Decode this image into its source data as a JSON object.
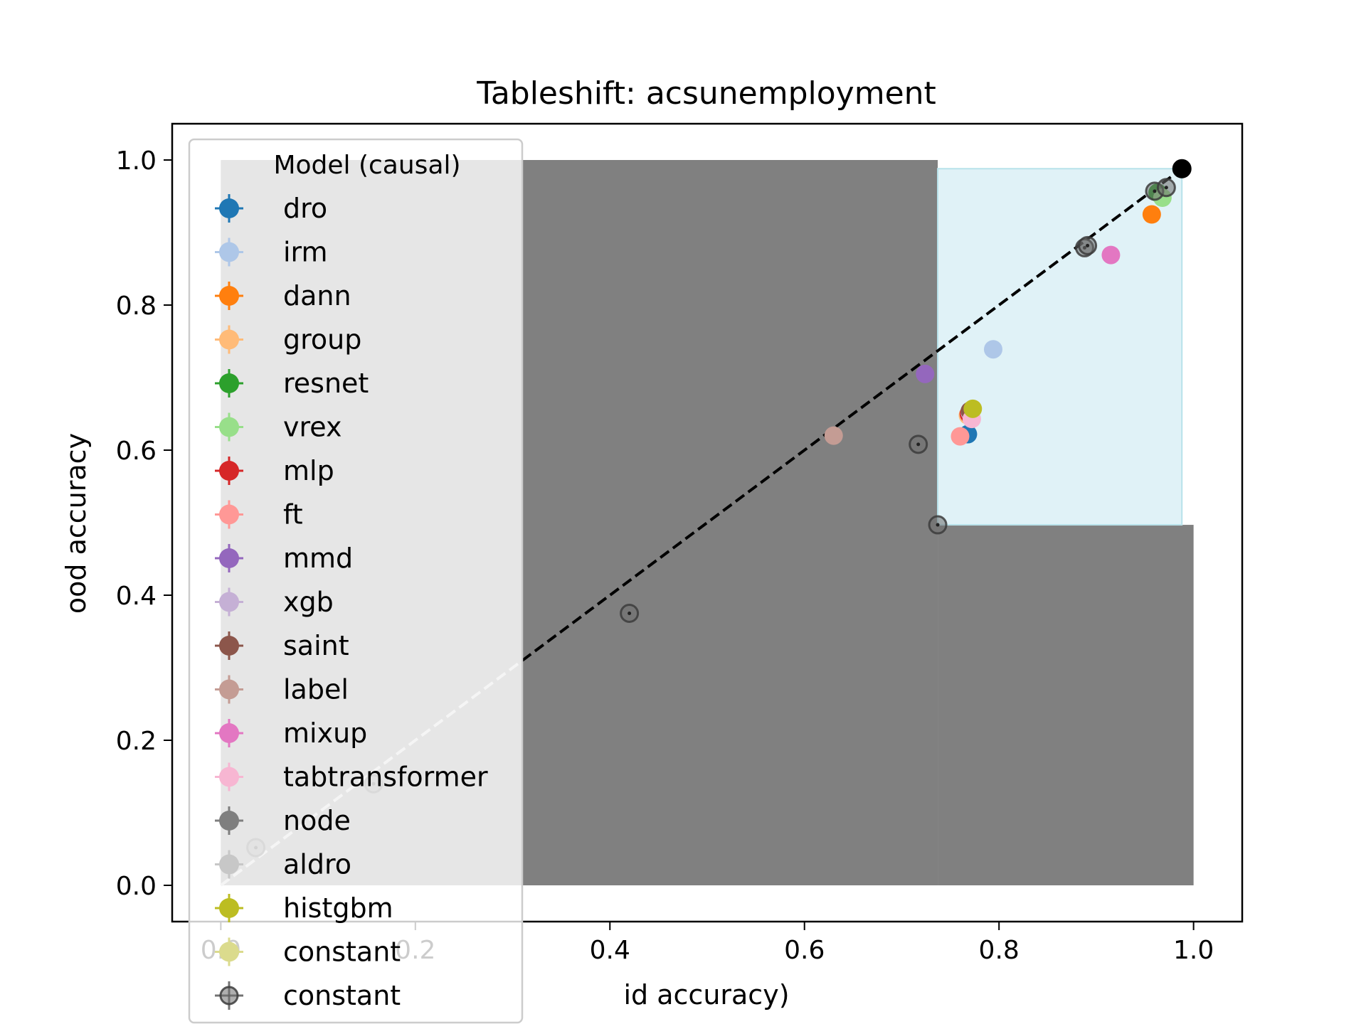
{
  "chart_data": {
    "type": "scatter",
    "title": "Tableshift: acsunemployment",
    "xlabel": "id accuracy)",
    "ylabel": "ood accuracy",
    "xlim": [
      -0.05,
      1.05
    ],
    "ylim": [
      -0.05,
      1.05
    ],
    "xticks": [
      {
        "v": 0.0,
        "label": "0.0"
      },
      {
        "v": 0.2,
        "label": "0.2"
      },
      {
        "v": 0.4,
        "label": "0.4"
      },
      {
        "v": 0.6,
        "label": "0.6"
      },
      {
        "v": 0.8,
        "label": "0.8"
      },
      {
        "v": 1.0,
        "label": "1.0"
      }
    ],
    "yticks": [
      {
        "v": 0.0,
        "label": "0.0"
      },
      {
        "v": 0.2,
        "label": "0.2"
      },
      {
        "v": 0.4,
        "label": "0.4"
      },
      {
        "v": 0.6,
        "label": "0.6"
      },
      {
        "v": 0.8,
        "label": "0.8"
      },
      {
        "v": 1.0,
        "label": "1.0"
      }
    ],
    "grid": false,
    "legend": {
      "title": "Model (causal)",
      "placement": "upper-left",
      "entries": [
        {
          "label": "dro",
          "color": "#1f77b4"
        },
        {
          "label": "irm",
          "color": "#aec7e8"
        },
        {
          "label": "dann",
          "color": "#ff7f0e"
        },
        {
          "label": "group",
          "color": "#ffbb78"
        },
        {
          "label": "resnet",
          "color": "#2ca02c"
        },
        {
          "label": "vrex",
          "color": "#98df8a"
        },
        {
          "label": "mlp",
          "color": "#d62728"
        },
        {
          "label": "ft",
          "color": "#ff9896"
        },
        {
          "label": "mmd",
          "color": "#9467bd"
        },
        {
          "label": "xgb",
          "color": "#c5b0d5"
        },
        {
          "label": "saint",
          "color": "#8c564b"
        },
        {
          "label": "label",
          "color": "#c49c94"
        },
        {
          "label": "mixup",
          "color": "#e377c2"
        },
        {
          "label": "tabtransformer",
          "color": "#f7b6d2"
        },
        {
          "label": "node",
          "color": "#7f7f7f"
        },
        {
          "label": "aldro",
          "color": "#c7c7c7"
        },
        {
          "label": "histgbm",
          "color": "#bcbd22"
        },
        {
          "label": "constant",
          "color": "#dbdb8d"
        },
        {
          "label": "constant",
          "color": "#555555",
          "style": "hollow"
        }
      ]
    },
    "regions": [
      {
        "name": "dominated-region",
        "x": [
          0.0,
          0.737
        ],
        "y": [
          0.0,
          1.0
        ],
        "color": "#808080"
      },
      {
        "name": "dominated-region-lower",
        "x": [
          0.737,
          1.0
        ],
        "y": [
          0.0,
          0.497
        ],
        "color": "#808080"
      },
      {
        "name": "frontier-region",
        "x": [
          0.737,
          0.988
        ],
        "y": [
          0.497,
          0.988
        ],
        "color": "#e0f2f7"
      }
    ],
    "reference_lines": [
      {
        "name": "diagonal-reference-light",
        "points": [
          [
            0.0,
            0.0
          ],
          [
            0.31,
            0.31
          ]
        ],
        "color": "#cccccc"
      },
      {
        "name": "diagonal-reference-dark",
        "points": [
          [
            0.31,
            0.31
          ],
          [
            0.988,
            0.988
          ]
        ],
        "color": "#000000"
      }
    ],
    "series": [
      {
        "name": "dro",
        "color": "#1f77b4",
        "points": [
          [
            0.768,
            0.622
          ]
        ]
      },
      {
        "name": "irm",
        "color": "#aec7e8",
        "points": [
          [
            0.794,
            0.739
          ]
        ]
      },
      {
        "name": "dann",
        "color": "#ff7f0e",
        "points": [
          [
            0.957,
            0.925
          ]
        ]
      },
      {
        "name": "group",
        "color": "#ffbb78",
        "points": [
          [
            0.768,
            0.648
          ]
        ]
      },
      {
        "name": "resnet",
        "color": "#2ca02c",
        "points": [
          [
            0.963,
            0.955
          ]
        ]
      },
      {
        "name": "vrex",
        "color": "#98df8a",
        "points": [
          [
            0.968,
            0.948
          ]
        ]
      },
      {
        "name": "mlp",
        "color": "#d62728",
        "points": [
          [
            0.769,
            0.65
          ]
        ]
      },
      {
        "name": "ft",
        "color": "#ff9896",
        "points": [
          [
            0.76,
            0.619
          ]
        ]
      },
      {
        "name": "mmd",
        "color": "#9467bd",
        "points": [
          [
            0.724,
            0.705
          ]
        ]
      },
      {
        "name": "xgb",
        "color": "#c5b0d5",
        "points": [
          [
            0.77,
            0.652
          ]
        ]
      },
      {
        "name": "saint",
        "color": "#8c564b",
        "points": [
          [
            0.77,
            0.654
          ]
        ]
      },
      {
        "name": "label",
        "color": "#c49c94",
        "points": [
          [
            0.63,
            0.62
          ]
        ]
      },
      {
        "name": "mixup",
        "color": "#e377c2",
        "points": [
          [
            0.915,
            0.869
          ]
        ]
      },
      {
        "name": "tabtransformer",
        "color": "#f7b6d2",
        "points": [
          [
            0.772,
            0.643
          ]
        ]
      },
      {
        "name": "node",
        "color": "#7f7f7f",
        "points": []
      },
      {
        "name": "aldro",
        "color": "#c7c7c7",
        "points": []
      },
      {
        "name": "histgbm",
        "color": "#bcbd22",
        "points": [
          [
            0.773,
            0.657
          ]
        ]
      },
      {
        "name": "constant",
        "color": "#dbdb8d",
        "points": []
      },
      {
        "name": "constant",
        "color": "#555555",
        "style": "hollow",
        "points": [
          [
            0.988,
            0.988
          ],
          [
            0.96,
            0.957
          ],
          [
            0.972,
            0.962
          ],
          [
            0.888,
            0.879
          ],
          [
            0.891,
            0.882
          ],
          [
            0.717,
            0.608
          ],
          [
            0.42,
            0.375
          ],
          [
            0.737,
            0.497
          ],
          [
            0.036,
            0.052
          ],
          [
            0.157,
            0.14
          ]
        ]
      }
    ]
  }
}
